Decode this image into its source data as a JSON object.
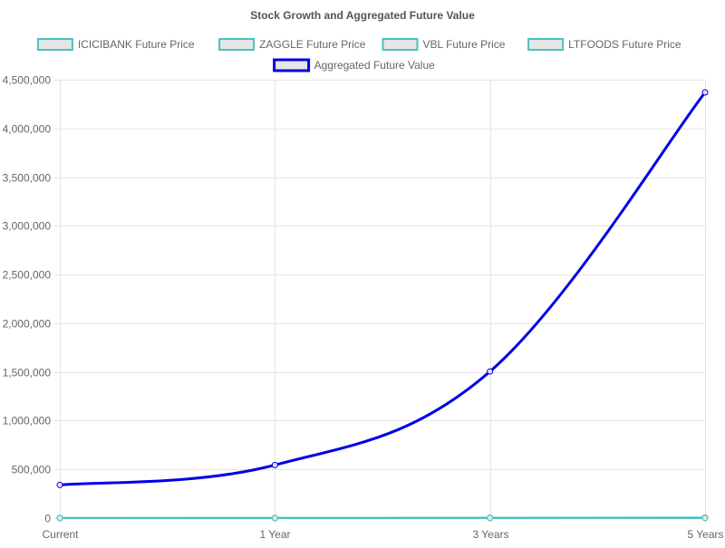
{
  "chart_data": {
    "type": "line",
    "title": "Stock Growth and Aggregated Future Value",
    "xlabel": "",
    "ylabel": "",
    "categories": [
      "Current",
      "1 Year",
      "3 Years",
      "5 Years"
    ],
    "ylim": [
      0,
      4500000
    ],
    "yticks": [
      0,
      500000,
      1000000,
      1500000,
      2000000,
      2500000,
      3000000,
      3500000,
      4000000,
      4500000
    ],
    "grid": true,
    "legend_position": "top",
    "series": [
      {
        "name": "ICICIBANK Future Price",
        "values": [
          1200,
          1450,
          2000,
          2800
        ],
        "color": "#4bc0c0",
        "fill": "#e6e6e6",
        "line_width": 2
      },
      {
        "name": "ZAGGLE Future Price",
        "values": [
          600,
          800,
          1400,
          2500
        ],
        "color": "#4bc0c0",
        "fill": "#e6e6e6",
        "line_width": 2
      },
      {
        "name": "VBL Future Price",
        "values": [
          1500,
          2000,
          3500,
          6000
        ],
        "color": "#4bc0c0",
        "fill": "#e6e6e6",
        "line_width": 2
      },
      {
        "name": "LTFOODS Future Price",
        "values": [
          400,
          500,
          800,
          1200
        ],
        "color": "#4bc0c0",
        "fill": "#e6e6e6",
        "line_width": 2
      },
      {
        "name": "Aggregated Future Value",
        "values": [
          340000,
          545000,
          1505000,
          4370000
        ],
        "color": "#0000e6",
        "fill": "#e6e6e6",
        "line_width": 3
      }
    ]
  }
}
